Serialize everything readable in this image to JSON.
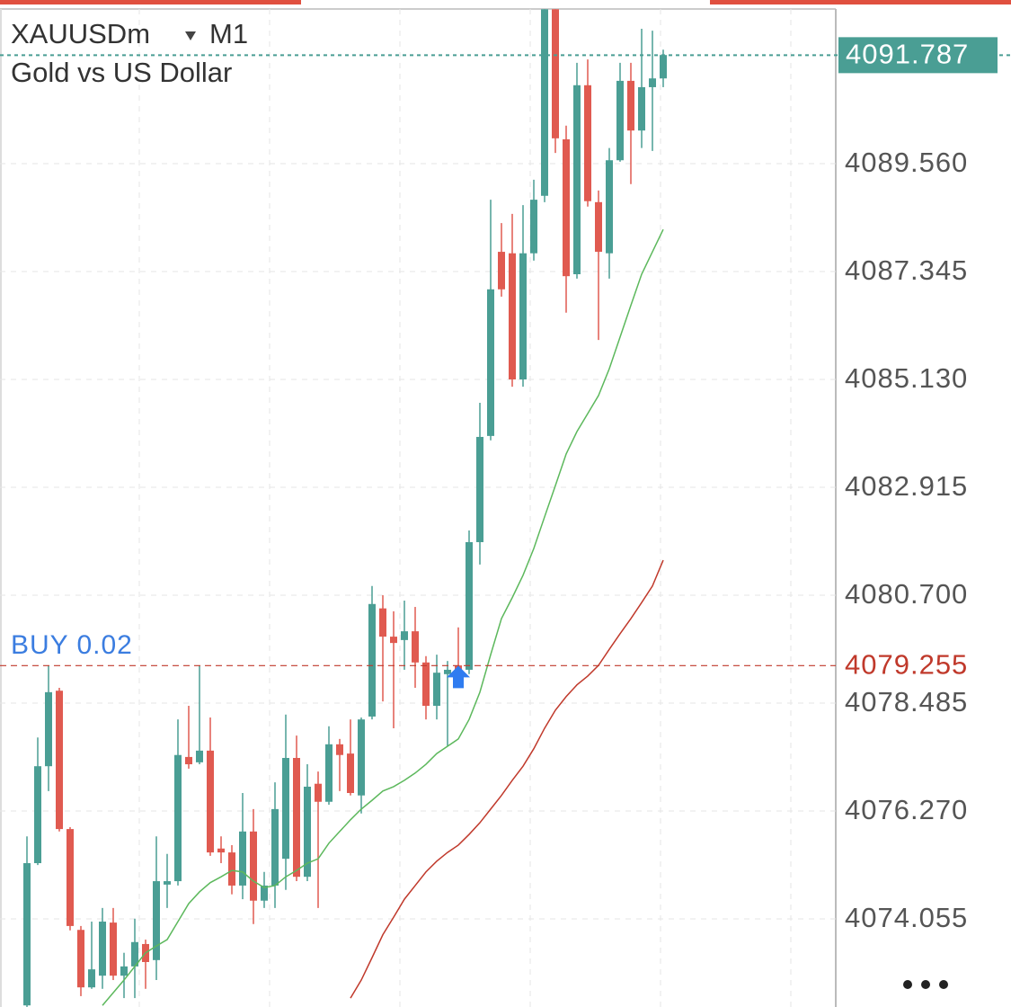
{
  "chart_data": {
    "type": "candlestick",
    "symbol": "XAUUSDm",
    "timeframe": "M1",
    "title": "Gold vs US Dollar",
    "up_color": "#4a9e94",
    "down_color": "#e05a50",
    "open": [
      4072.28,
      4075.2,
      4077.19,
      4078.74,
      4075.9,
      4073.83,
      4072.65,
      4072.89,
      4073.98,
      4072.89,
      4073.08,
      4073.54,
      4073.21,
      4074.76,
      4074.83,
      4077.38,
      4077.27,
      4077.51,
      4075.5,
      4075.42,
      4074.74,
      4075.85,
      4074.43,
      4074.74,
      4075.29,
      4077.36,
      4074.92,
      4076.83,
      4076.46,
      4077.64,
      4077.45,
      4076.59,
      4078.21,
      4080.43,
      4079.85,
      4079.78,
      4079.96,
      4079.32,
      4078.43,
      4079.08,
      4079.26,
      4079.17,
      4081.79,
      4083.97,
      4087.75,
      4087.72,
      4085.13,
      4087.72,
      4088.9,
      4092.73,
      4090.06,
      4087.29,
      4091.17,
      4088.77,
      4087.72,
      4089.63,
      4091.26,
      4090.24,
      4091.13,
      4091.31
    ],
    "high": [
      4075.75,
      4077.78,
      4079.26,
      4078.8,
      4075.94,
      4073.91,
      4074.0,
      4074.28,
      4074.28,
      4073.36,
      4074.06,
      4073.63,
      4075.75,
      4075.39,
      4078.15,
      4078.43,
      4079.26,
      4078.19,
      4075.75,
      4075.57,
      4076.64,
      4076.31,
      4075.02,
      4076.86,
      4078.25,
      4077.82,
      4077.23,
      4077.08,
      4078.01,
      4077.75,
      4078.15,
      4078.19,
      4080.89,
      4080.7,
      4080.37,
      4080.59,
      4080.46,
      4079.45,
      4079.48,
      4079.35,
      4080.04,
      4082.03,
      4084.65,
      4088.82,
      4088.34,
      4088.53,
      4088.71,
      4089.23,
      4092.73,
      4092.73,
      4090.34,
      4091.63,
      4091.7,
      4089.01,
      4089.88,
      4091.63,
      4091.63,
      4092.33,
      4092.29,
      4091.9
    ],
    "low": [
      4072.25,
      4075.16,
      4076.68,
      4075.85,
      4073.82,
      4072.47,
      4072.62,
      4072.62,
      4072.8,
      4072.43,
      4072.43,
      4072.62,
      4072.8,
      4074.28,
      4074.74,
      4077.14,
      4077.23,
      4075.35,
      4075.2,
      4074.56,
      4074.46,
      4073.95,
      4074.28,
      4074.28,
      4074.65,
      4074.83,
      4074.83,
      4074.28,
      4076.4,
      4076.68,
      4076.59,
      4076.22,
      4078.15,
      4078.52,
      4077.97,
      4079.17,
      4078.8,
      4078.15,
      4078.15,
      4077.6,
      4078.89,
      4079.08,
      4081.33,
      4083.88,
      4086.83,
      4084.98,
      4084.98,
      4087.57,
      4088.77,
      4089.78,
      4086.5,
      4087.2,
      4088.68,
      4085.94,
      4087.2,
      4089.6,
      4089.14,
      4089.88,
      4089.82,
      4091.13
    ],
    "close": [
      4075.2,
      4077.19,
      4078.71,
      4075.9,
      4073.91,
      4072.65,
      4073.02,
      4074.0,
      4072.89,
      4073.08,
      4073.58,
      4073.17,
      4074.83,
      4074.83,
      4077.42,
      4077.23,
      4077.51,
      4075.42,
      4075.42,
      4074.74,
      4075.85,
      4074.43,
      4074.74,
      4076.31,
      4077.36,
      4074.92,
      4076.77,
      4076.46,
      4077.64,
      4077.42,
      4076.64,
      4078.15,
      4080.52,
      4079.85,
      4079.72,
      4079.96,
      4079.32,
      4078.43,
      4079.11,
      4079.17,
      4079.17,
      4081.79,
      4083.95,
      4086.98,
      4086.98,
      4085.13,
      4087.72,
      4088.82,
      4092.73,
      4090.08,
      4087.25,
      4091.17,
      4088.79,
      4087.75,
      4089.63,
      4091.26,
      4090.24,
      4091.13,
      4091.31,
      4091.79
    ],
    "lines": [
      {
        "color": "#5cb85c",
        "values": [
          null,
          null,
          null,
          null,
          null,
          null,
          null,
          4072.28,
          4072.54,
          4072.8,
          4073.08,
          4073.36,
          4073.5,
          4073.63,
          4074.0,
          4074.37,
          4074.61,
          4074.8,
          4074.92,
          4075.05,
          4075.02,
          4074.83,
          4074.7,
          4074.74,
          4074.92,
          4075.05,
          4075.2,
          4075.29,
          4075.61,
          4075.85,
          4076.09,
          4076.31,
          4076.49,
          4076.68,
          4076.77,
          4076.9,
          4077.05,
          4077.23,
          4077.45,
          4077.6,
          4077.75,
          4078.15,
          4078.71,
          4079.48,
          4080.22,
          4080.65,
          4081.11,
          4081.66,
          4082.31,
          4082.95,
          4083.6,
          4084.06,
          4084.43,
          4084.8,
          4085.35,
          4086.0,
          4086.65,
          4087.29,
          4087.75,
          4088.21
        ]
      },
      {
        "color": "#c0392b",
        "values": [
          null,
          null,
          null,
          null,
          null,
          null,
          null,
          null,
          null,
          null,
          null,
          null,
          null,
          null,
          null,
          null,
          null,
          null,
          null,
          null,
          null,
          null,
          null,
          null,
          null,
          null,
          null,
          null,
          null,
          null,
          4072.43,
          4072.8,
          4073.26,
          4073.73,
          4074.09,
          4074.46,
          4074.74,
          4075.02,
          4075.24,
          4075.42,
          4075.57,
          4075.79,
          4076.03,
          4076.31,
          4076.59,
          4076.9,
          4077.19,
          4077.55,
          4077.97,
          4078.34,
          4078.62,
          4078.86,
          4079.04,
          4079.26,
          4079.59,
          4079.91,
          4080.22,
          4080.55,
          4080.89,
          4081.42
        ]
      }
    ],
    "ylim": [
      4072.247,
      4092.735
    ],
    "yticks": [
      {
        "value": 4089.56,
        "label": "4089.560"
      },
      4087.345,
      {
        "value": 4085.13,
        "label": "4085.130"
      },
      4082.915,
      {
        "value": 4080.7,
        "label": "4080.700"
      },
      4078.485,
      {
        "value": 4076.27,
        "label": "4076.270"
      },
      4074.055
    ],
    "grid": true,
    "current_price": 4091.787,
    "current_price_color": "#4a9e94",
    "position": {
      "label": "BUY 0.02",
      "price": 4079.255,
      "color": "#c0392b",
      "label_color": "#3b7de0"
    }
  }
}
